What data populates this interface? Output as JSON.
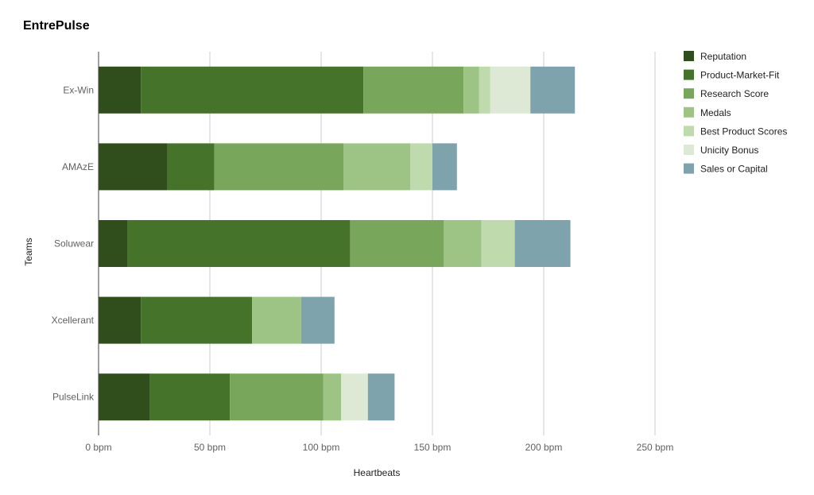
{
  "chart_data": {
    "type": "bar",
    "orientation": "horizontal",
    "stacked": true,
    "title": "EntrePulse",
    "xlabel": "Heartbeats",
    "ylabel": "Teams",
    "xlim": [
      0,
      250
    ],
    "x_ticks": [
      {
        "value": 0,
        "label": "0 bpm"
      },
      {
        "value": 50,
        "label": "50 bpm"
      },
      {
        "value": 100,
        "label": "100 bpm"
      },
      {
        "value": 150,
        "label": "150 bpm"
      },
      {
        "value": 200,
        "label": "200 bpm"
      },
      {
        "value": 250,
        "label": "250 bpm"
      }
    ],
    "grid": true,
    "legend_position": "right",
    "categories": [
      "Ex-Win",
      "AMAzE",
      "Soluwear",
      "Xcellerant",
      "PulseLink"
    ],
    "series": [
      {
        "name": "Reputation",
        "color": "#304d1c",
        "values": [
          19,
          31,
          13,
          19,
          23
        ]
      },
      {
        "name": "Product-Market-Fit",
        "color": "#45732a",
        "values": [
          100,
          21,
          100,
          50,
          36
        ]
      },
      {
        "name": "Research Score",
        "color": "#78a65a",
        "values": [
          45,
          58,
          42,
          0,
          42
        ]
      },
      {
        "name": "Medals",
        "color": "#9dc484",
        "values": [
          7,
          30,
          17,
          22,
          8
        ]
      },
      {
        "name": "Best Product Scores",
        "color": "#bfdbae",
        "values": [
          5,
          10,
          15,
          0,
          0
        ]
      },
      {
        "name": "Unicity Bonus",
        "color": "#dde9d4",
        "values": [
          18,
          0,
          0,
          0,
          12
        ]
      },
      {
        "name": "Sales or Capital",
        "color": "#7fa3ad",
        "values": [
          20,
          11,
          25,
          15,
          12
        ]
      }
    ]
  }
}
